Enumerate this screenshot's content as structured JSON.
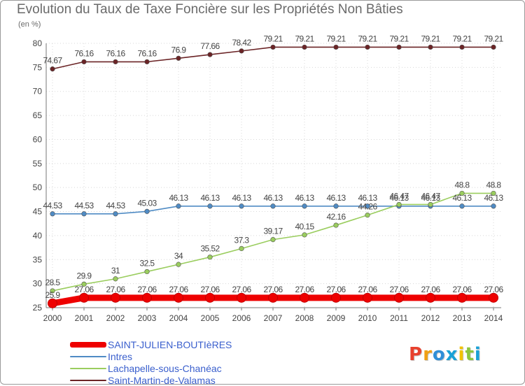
{
  "header": {
    "title": "Evolution du Taux de Taxe Foncière sur les Propriétés Non Bâties",
    "unit": "(en %)"
  },
  "chart_data": {
    "type": "line",
    "title": "Evolution du Taux de Taxe Foncière sur les Propriétés Non Bâties",
    "ylabel": "(en %)",
    "xlabel": "",
    "categories": [
      "2000",
      "2001",
      "2002",
      "2003",
      "2004",
      "2005",
      "2006",
      "2007",
      "2008",
      "2009",
      "2010",
      "2011",
      "2012",
      "2013",
      "2014"
    ],
    "ylim": [
      25,
      80
    ],
    "yticks": [
      25,
      30,
      35,
      40,
      45,
      50,
      55,
      60,
      65,
      70,
      75,
      80
    ],
    "series": [
      {
        "name": "Saint-Martin-de-Valamas",
        "color": "#6b2426",
        "values": [
          74.67,
          76.16,
          76.16,
          76.16,
          76.9,
          77.66,
          78.42,
          79.21,
          79.21,
          79.21,
          79.21,
          79.21,
          79.21,
          79.21,
          79.21
        ],
        "labels": [
          "74.67",
          "76.16",
          "76.16",
          "76.16",
          "76.9",
          "77.66",
          "78.42",
          "79.21",
          "79.21",
          "79.21",
          "79.21",
          "79.21",
          "79.21",
          "79.21",
          "79.21"
        ]
      },
      {
        "name": "Intres",
        "color": "#4f8bc4",
        "values": [
          44.53,
          44.53,
          44.53,
          45.03,
          46.13,
          46.13,
          46.13,
          46.13,
          46.13,
          46.13,
          46.13,
          46.13,
          46.13,
          46.13,
          46.13
        ],
        "labels": [
          "44.53",
          "44.53",
          "44.53",
          "45.03",
          "46.13",
          "46.13",
          "46.13",
          "46.13",
          "46.13",
          "46.13",
          "46.13",
          "46.13",
          "46.13",
          "46.13",
          "46.13"
        ]
      },
      {
        "name": "Lachapelle-sous-Chanéac",
        "color": "#9acd5e",
        "values": [
          28.5,
          29.9,
          31,
          32.5,
          34,
          35.52,
          37.3,
          39.17,
          40.15,
          42.16,
          44.26,
          46.47,
          46.47,
          48.8,
          48.8
        ],
        "labels": [
          "28.5",
          "29.9",
          "31",
          "32.5",
          "34",
          "35.52",
          "37.3",
          "39.17",
          "40.15",
          "42.16",
          "44.26",
          "46.47",
          "46.47",
          "48.8",
          "48.8"
        ]
      },
      {
        "name": "SAINT-JULIEN-BOUTIèRES",
        "color": "#ee0000",
        "values": [
          25.9,
          27.06,
          27.06,
          27.06,
          27.06,
          27.06,
          27.06,
          27.06,
          27.06,
          27.06,
          27.06,
          27.06,
          27.06,
          27.06,
          27.06
        ],
        "labels": [
          "25.9",
          "27.06",
          "27.06",
          "27.06",
          "27.06",
          "27.06",
          "27.06",
          "27.06",
          "27.06",
          "27.06",
          "27.06",
          "27.06",
          "27.06",
          "27.06",
          "27.06"
        ]
      }
    ]
  },
  "legend": {
    "items": [
      {
        "label": "SAINT-JULIEN-BOUTIèRES",
        "color": "#ee0000"
      },
      {
        "label": "Intres",
        "color": "#4f8bc4"
      },
      {
        "label": "Lachapelle-sous-Chanéac",
        "color": "#9acd5e"
      },
      {
        "label": "Saint-Martin-de-Valamas",
        "color": "#6b2426"
      }
    ]
  },
  "logo": {
    "text": "Proxiti",
    "colors": [
      "#e8402d",
      "#f0a014",
      "#2f8fd8",
      "#1aa1d6",
      "#f2c200",
      "#8cc63e",
      "#1aa1d6"
    ]
  }
}
